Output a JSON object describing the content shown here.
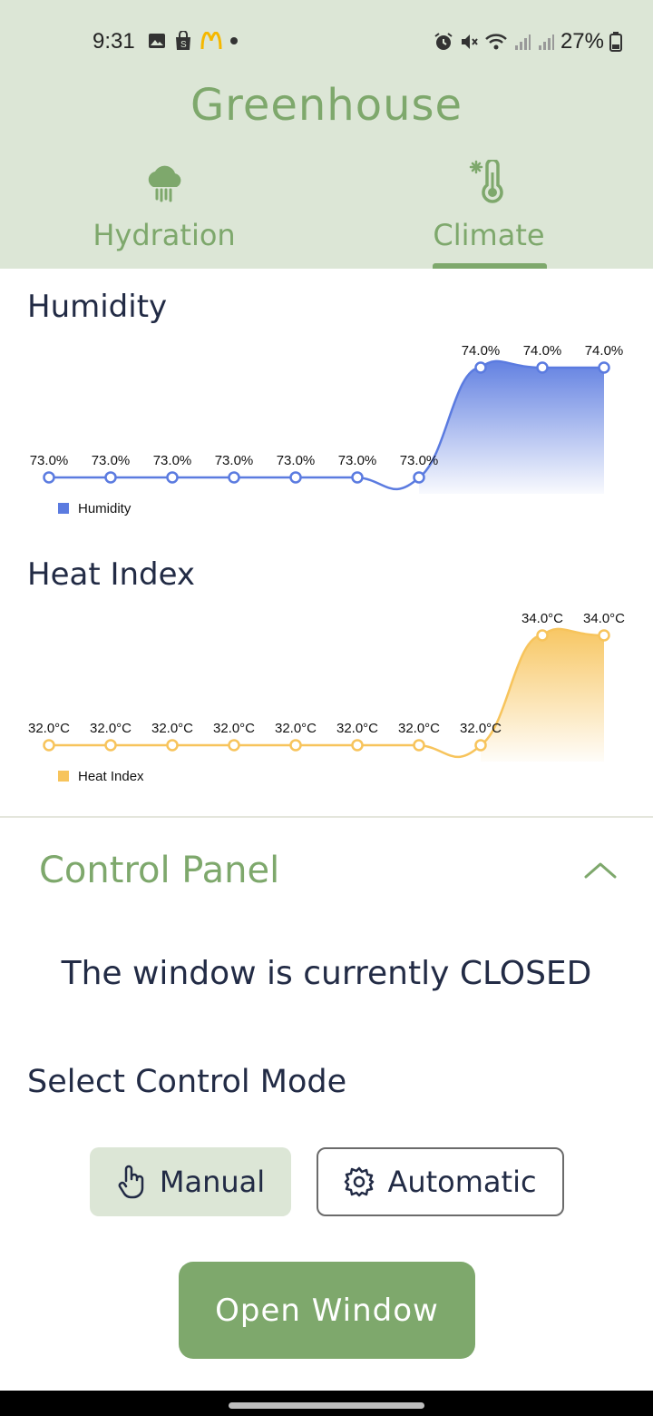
{
  "status_bar": {
    "time": "9:31",
    "battery": "27%",
    "left_icons": [
      "image-icon",
      "shop-icon",
      "mcdonalds-icon",
      "dot-icon"
    ],
    "right_icons": [
      "alarm-icon",
      "mute-icon",
      "wifi-icon",
      "signal-icon",
      "signal-icon",
      "battery-icon"
    ]
  },
  "app": {
    "title": "Greenhouse"
  },
  "tabs": [
    {
      "label": "Hydration",
      "icon": "cloud-rain-icon",
      "active": false
    },
    {
      "label": "Climate",
      "icon": "thermometer-icon",
      "active": true
    }
  ],
  "humidity": {
    "title": "Humidity"
  },
  "heat_index": {
    "title": "Heat Index"
  },
  "chart_data": [
    {
      "type": "area",
      "title": "Humidity",
      "legend": "Humidity",
      "legend_position": "bottom-left",
      "color": "#5b7be0",
      "unit": "%",
      "series": [
        {
          "name": "Humidity",
          "values": [
            73.0,
            73.0,
            73.0,
            73.0,
            73.0,
            73.0,
            73.0,
            74.0,
            74.0,
            74.0
          ]
        }
      ],
      "data_labels": [
        "73.0%",
        "73.0%",
        "73.0%",
        "73.0%",
        "73.0%",
        "73.0%",
        "73.0%",
        "74.0%",
        "74.0%",
        "74.0%"
      ],
      "ylim": [
        72.95,
        74.0
      ]
    },
    {
      "type": "area",
      "title": "Heat Index",
      "legend": "Heat Index",
      "legend_position": "bottom-left",
      "color": "#f7c45c",
      "unit": "°C",
      "series": [
        {
          "name": "Heat Index",
          "values": [
            32.0,
            32.0,
            32.0,
            32.0,
            32.0,
            32.0,
            32.0,
            32.0,
            34.0,
            34.0
          ]
        }
      ],
      "data_labels": [
        "32.0°C",
        "32.0°C",
        "32.0°C",
        "32.0°C",
        "32.0°C",
        "32.0°C",
        "32.0°C",
        "32.0°C",
        "34.0°C",
        "34.0°C"
      ],
      "ylim": [
        31.9,
        34.0
      ]
    }
  ],
  "control_panel": {
    "title": "Control Panel",
    "expanded": true,
    "window_status": "The window is currently CLOSED",
    "mode_title": "Select Control Mode",
    "modes": [
      {
        "label": "Manual",
        "icon": "hand-pointer-icon",
        "selected": true
      },
      {
        "label": "Automatic",
        "icon": "gear-icon",
        "selected": false
      }
    ],
    "action_button": "Open Window"
  },
  "colors": {
    "accent": "#7ea86c",
    "header_bg": "#dce6d6",
    "humidity": "#5b7be0",
    "heat_index": "#f7c45c"
  }
}
